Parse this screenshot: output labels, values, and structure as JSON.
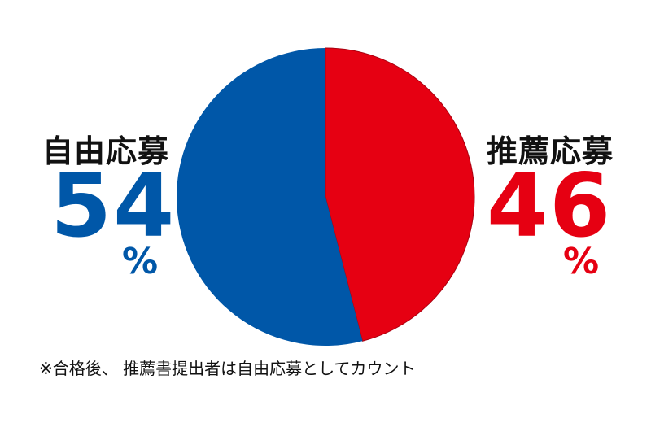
{
  "chart_data": {
    "type": "pie",
    "title": "",
    "slices": [
      {
        "label": "自由応募",
        "value": 54,
        "display": "54",
        "unit": "%",
        "color": "#0057a8"
      },
      {
        "label": "推薦応募",
        "value": 46,
        "display": "46",
        "unit": "%",
        "color": "#e60012"
      }
    ]
  },
  "footnote": "※合格後、 推薦書提出者は自由応募としてカウント"
}
